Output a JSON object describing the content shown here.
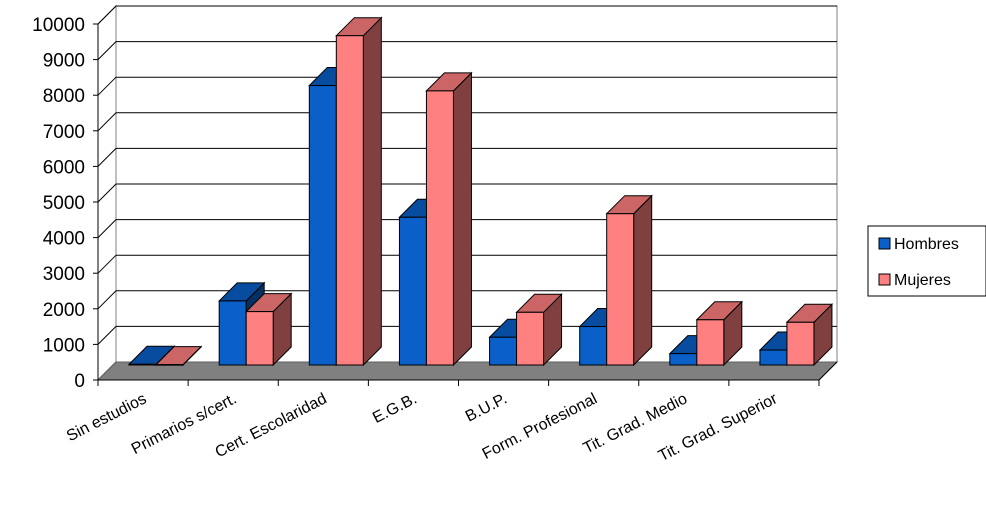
{
  "chart_data": {
    "type": "bar",
    "style": "3d-clustered-column",
    "title": "",
    "xlabel": "",
    "ylabel": "",
    "ylim": [
      0,
      10000
    ],
    "yticks": [
      0,
      1000,
      2000,
      3000,
      4000,
      5000,
      6000,
      7000,
      8000,
      9000,
      10000
    ],
    "categories": [
      "Sin estudios",
      "Primarios s/cert.",
      "Cert. Escolaridad",
      "E.G.B.",
      "B.U.P.",
      "Form. Profesional",
      "Tit. Grad. Medio",
      "Tit. Grad. Superior"
    ],
    "series": [
      {
        "name": "Hombres",
        "color": "#0a5fc8",
        "values": [
          20,
          1800,
          7850,
          4150,
          780,
          1080,
          320,
          420
        ]
      },
      {
        "name": "Mujeres",
        "color": "#ff8080",
        "values": [
          10,
          1500,
          9250,
          7700,
          1480,
          4250,
          1270,
          1200
        ]
      }
    ],
    "grid": true,
    "legend_position": "right"
  }
}
